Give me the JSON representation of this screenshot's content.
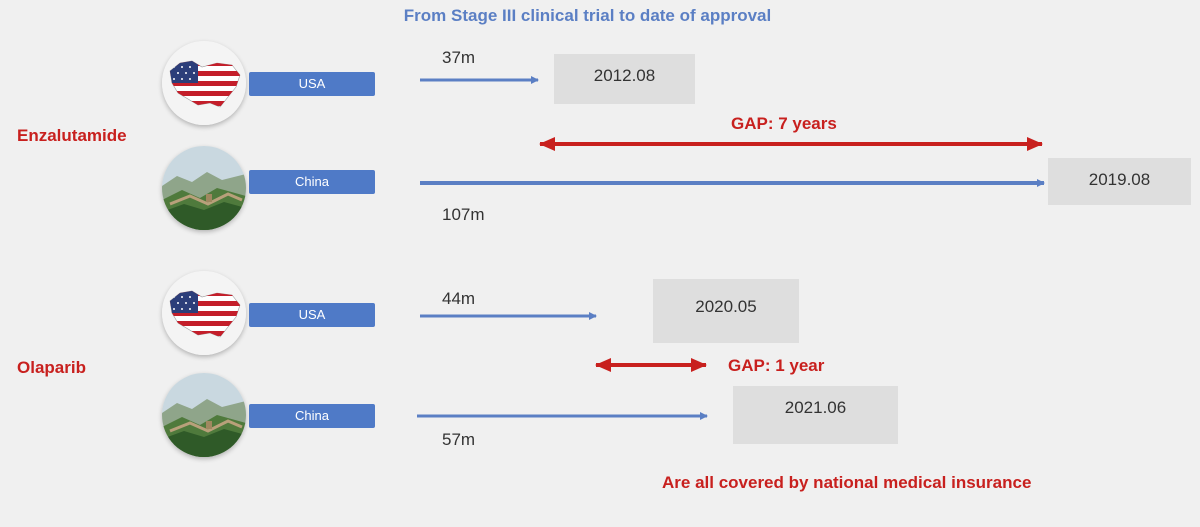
{
  "title": "From Stage III clinical trial to date of approval",
  "drugs": [
    {
      "name": "Enzalutamide",
      "rows": [
        {
          "country": "USA",
          "duration": "37m",
          "date": "2012.08"
        },
        {
          "country": "China",
          "duration": "107m",
          "date": "2019.08"
        }
      ],
      "gap": "GAP: 7 years"
    },
    {
      "name": "Olaparib",
      "rows": [
        {
          "country": "USA",
          "duration": "44m",
          "date": "2020.05"
        },
        {
          "country": "China",
          "duration": "57m",
          "date": "2021.06"
        }
      ],
      "gap": "GAP: 1 year"
    }
  ],
  "footnote": "Are all covered by national medical insurance",
  "colors": {
    "title": "#5b7fc4",
    "accent_red": "#c8201e",
    "country_label": "#4f7ac7",
    "timeline_arrow": "#5b7fc4",
    "date_box": "#dedede",
    "background": "#f0f0f0"
  },
  "icons": {
    "usa": "usa-flag-map-icon",
    "china": "great-wall-icon"
  }
}
